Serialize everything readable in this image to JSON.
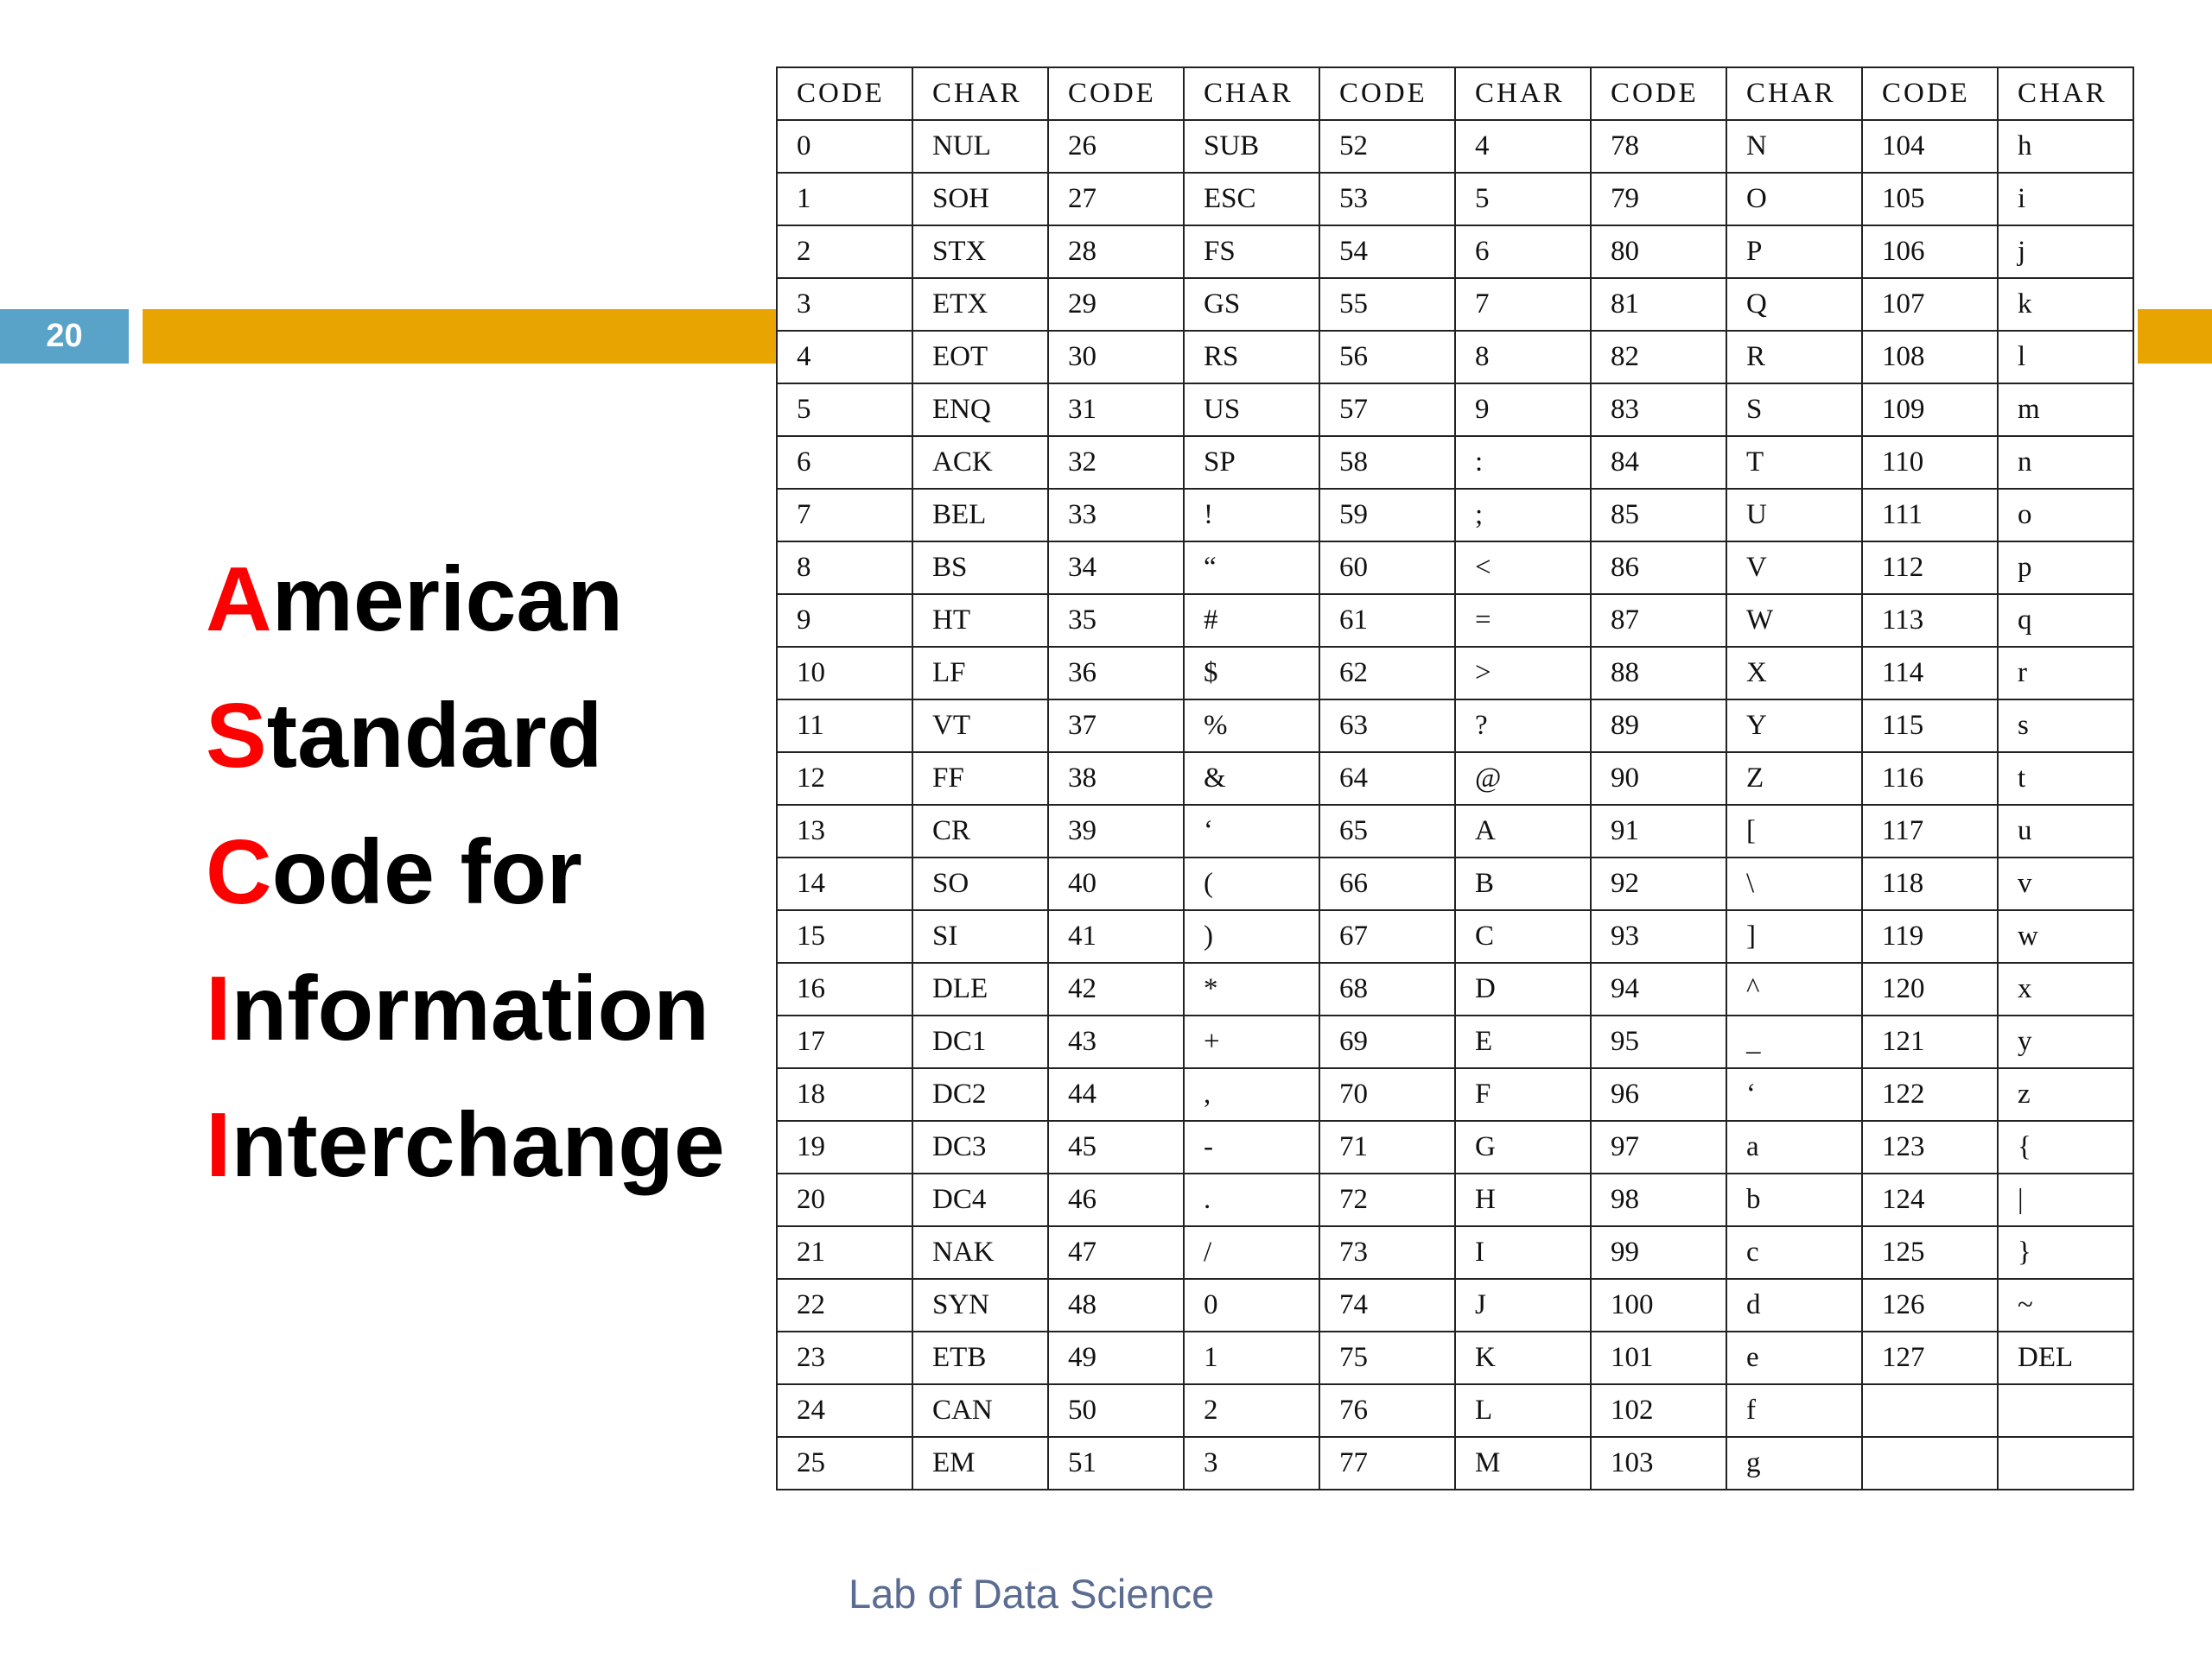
{
  "slide_number": "20",
  "title_lines": [
    {
      "initial": "A",
      "rest": "merican"
    },
    {
      "initial": "S",
      "rest": "tandard"
    },
    {
      "initial": "C",
      "rest": "ode for"
    },
    {
      "initial": "I",
      "rest": "nformation"
    },
    {
      "initial": "I",
      "rest": "nterchange"
    }
  ],
  "table": {
    "headers": [
      "CODE",
      "CHAR",
      "CODE",
      "CHAR",
      "CODE",
      "CHAR",
      "CODE",
      "CHAR",
      "CODE",
      "CHAR"
    ],
    "rows": [
      [
        "0",
        "NUL",
        "26",
        "SUB",
        "52",
        "4",
        "78",
        "N",
        "104",
        "h"
      ],
      [
        "1",
        "SOH",
        "27",
        "ESC",
        "53",
        "5",
        "79",
        "O",
        "105",
        "i"
      ],
      [
        "2",
        "STX",
        "28",
        "FS",
        "54",
        "6",
        "80",
        "P",
        "106",
        "j"
      ],
      [
        "3",
        "ETX",
        "29",
        "GS",
        "55",
        "7",
        "81",
        "Q",
        "107",
        "k"
      ],
      [
        "4",
        "EOT",
        "30",
        "RS",
        "56",
        "8",
        "82",
        "R",
        "108",
        "l"
      ],
      [
        "5",
        "ENQ",
        "31",
        "US",
        "57",
        "9",
        "83",
        "S",
        "109",
        "m"
      ],
      [
        "6",
        "ACK",
        "32",
        "SP",
        "58",
        ":",
        "84",
        "T",
        "110",
        "n"
      ],
      [
        "7",
        "BEL",
        "33",
        "!",
        "59",
        ";",
        "85",
        "U",
        "111",
        "o"
      ],
      [
        "8",
        "BS",
        "34",
        "“",
        "60",
        "<",
        "86",
        "V",
        "112",
        "p"
      ],
      [
        "9",
        "HT",
        "35",
        "#",
        "61",
        "=",
        "87",
        "W",
        "113",
        "q"
      ],
      [
        "10",
        "LF",
        "36",
        "$",
        "62",
        ">",
        "88",
        "X",
        "114",
        "r"
      ],
      [
        "11",
        "VT",
        "37",
        "%",
        "63",
        "?",
        "89",
        "Y",
        "115",
        "s"
      ],
      [
        "12",
        "FF",
        "38",
        "&",
        "64",
        "@",
        "90",
        "Z",
        "116",
        "t"
      ],
      [
        "13",
        "CR",
        "39",
        "‘",
        "65",
        "A",
        "91",
        "[",
        "117",
        "u"
      ],
      [
        "14",
        "SO",
        "40",
        "(",
        "66",
        "B",
        "92",
        "\\",
        "118",
        "v"
      ],
      [
        "15",
        "SI",
        "41",
        ")",
        "67",
        "C",
        "93",
        "]",
        "119",
        "w"
      ],
      [
        "16",
        "DLE",
        "42",
        "*",
        "68",
        "D",
        "94",
        "^",
        "120",
        "x"
      ],
      [
        "17",
        "DC1",
        "43",
        "+",
        "69",
        "E",
        "95",
        "_",
        "121",
        "y"
      ],
      [
        "18",
        "DC2",
        "44",
        ",",
        "70",
        "F",
        "96",
        "‘",
        "122",
        "z"
      ],
      [
        "19",
        "DC3",
        "45",
        "-",
        "71",
        "G",
        "97",
        "a",
        "123",
        "{"
      ],
      [
        "20",
        "DC4",
        "46",
        ".",
        "72",
        "H",
        "98",
        "b",
        "124",
        "|"
      ],
      [
        "21",
        "NAK",
        "47",
        "/",
        "73",
        "I",
        "99",
        "c",
        "125",
        "}"
      ],
      [
        "22",
        "SYN",
        "48",
        "0",
        "74",
        "J",
        "100",
        "d",
        "126",
        "~"
      ],
      [
        "23",
        "ETB",
        "49",
        "1",
        "75",
        "K",
        "101",
        "e",
        "127",
        "DEL"
      ],
      [
        "24",
        "CAN",
        "50",
        "2",
        "76",
        "L",
        "102",
        "f",
        "",
        ""
      ],
      [
        "25",
        "EM",
        "51",
        "3",
        "77",
        "M",
        "103",
        "g",
        "",
        ""
      ]
    ]
  },
  "footer": "Lab of Data Science",
  "colors": {
    "slide_number_bg": "#5aa3c8",
    "band": "#e8a400",
    "title_initial": "#ff0000",
    "footer_text": "#5b6c92"
  }
}
